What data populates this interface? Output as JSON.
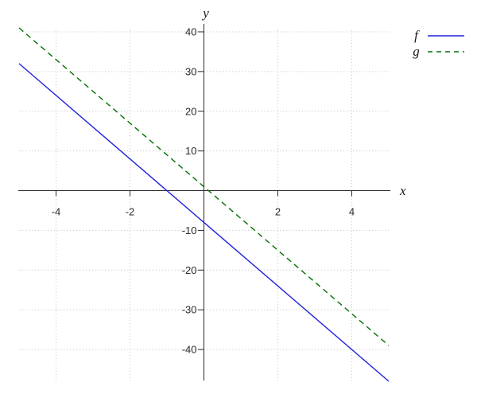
{
  "chart_data": {
    "type": "line",
    "title": "",
    "xlabel": "x",
    "ylabel": "y",
    "xlim": [
      -5,
      5
    ],
    "ylim": [
      -48,
      42
    ],
    "x_ticks": [
      -4,
      -2,
      2,
      4
    ],
    "y_ticks": [
      40,
      30,
      20,
      10,
      -10,
      -20,
      -30,
      -40
    ],
    "grid": "dotted",
    "axes_style": "zero-centered cross axes, ticks outside, no plot border",
    "legend_position": "top-right, outside plot, no box",
    "series": [
      {
        "name": "f",
        "equation": "f(x) = -8x - 8",
        "slope": -8,
        "intercept": -8,
        "style": "solid",
        "color": "#2222dd",
        "points": [
          [
            -5,
            32
          ],
          [
            -1,
            0
          ],
          [
            0,
            -8
          ],
          [
            5,
            -48
          ]
        ]
      },
      {
        "name": "g",
        "equation": "g(x) = -8x + 1",
        "slope": -8,
        "intercept": 1,
        "style": "dashed",
        "color": "#007000",
        "points": [
          [
            -5,
            41
          ],
          [
            0,
            1
          ],
          [
            5,
            -39
          ]
        ]
      }
    ],
    "colors": {
      "grid": "#cccccc",
      "axis": "#2a2a2a",
      "tick_label": "#2a2a2a",
      "background": "#ffffff"
    }
  }
}
